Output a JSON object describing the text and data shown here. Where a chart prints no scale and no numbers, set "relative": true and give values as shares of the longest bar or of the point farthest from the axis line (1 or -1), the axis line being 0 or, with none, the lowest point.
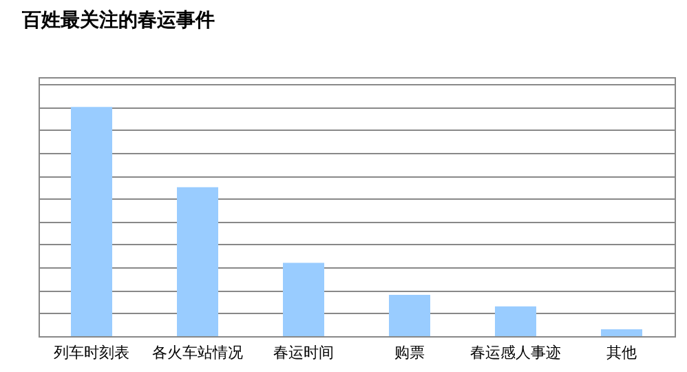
{
  "chart_data": {
    "type": "bar",
    "title": "百姓最关注的春运事件",
    "categories": [
      "列车时刻表",
      "各火车站情况",
      "春运时间",
      "购票",
      "春运感人事迹",
      "其他"
    ],
    "values": [
      1,
      0.65,
      0.32,
      0.18,
      0.13,
      0.03
    ],
    "color": "#99ccff",
    "relative": true,
    "grid": "y"
  }
}
